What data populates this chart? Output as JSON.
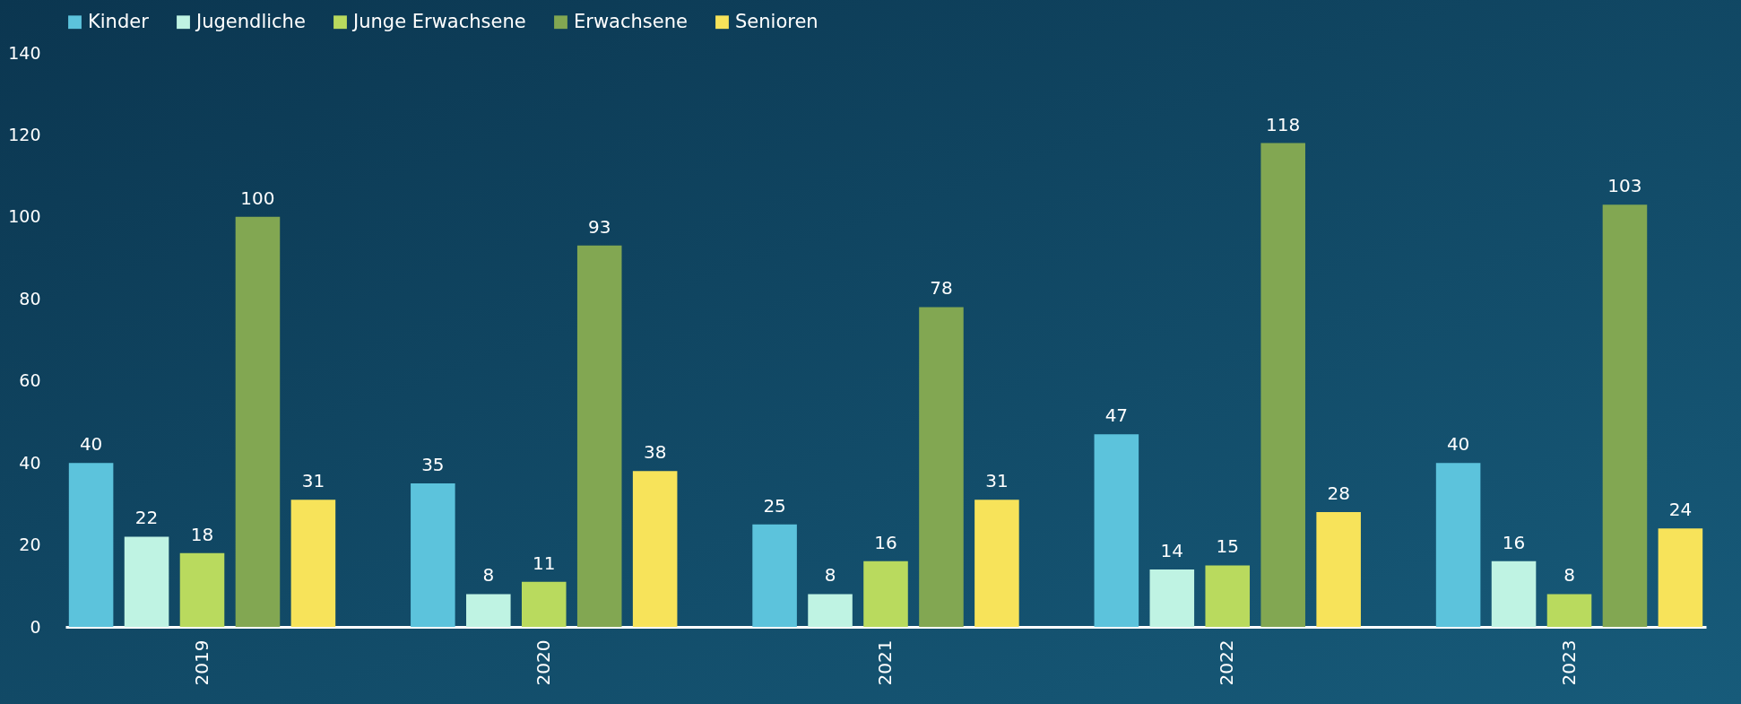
{
  "chart_data": {
    "type": "bar",
    "categories": [
      "2019",
      "2020",
      "2021",
      "2022",
      "2023"
    ],
    "series": [
      {
        "name": "Kinder",
        "color": "#5cc3dc",
        "values": [
          40,
          35,
          25,
          47,
          40
        ]
      },
      {
        "name": "Jugendliche",
        "color": "#bff3e3",
        "values": [
          22,
          8,
          8,
          14,
          16
        ]
      },
      {
        "name": "Junge Erwachsene",
        "color": "#b9da5e",
        "values": [
          18,
          11,
          16,
          15,
          8
        ]
      },
      {
        "name": "Erwachsene",
        "color": "#82a752",
        "values": [
          100,
          93,
          78,
          118,
          103
        ]
      },
      {
        "name": "Senioren",
        "color": "#f7e35a",
        "values": [
          31,
          38,
          31,
          28,
          24
        ]
      }
    ],
    "ylim": [
      0,
      140
    ],
    "yticks": [
      0,
      20,
      40,
      60,
      80,
      100,
      120,
      140
    ],
    "grid": false,
    "legend": "top",
    "data_labels": true
  }
}
